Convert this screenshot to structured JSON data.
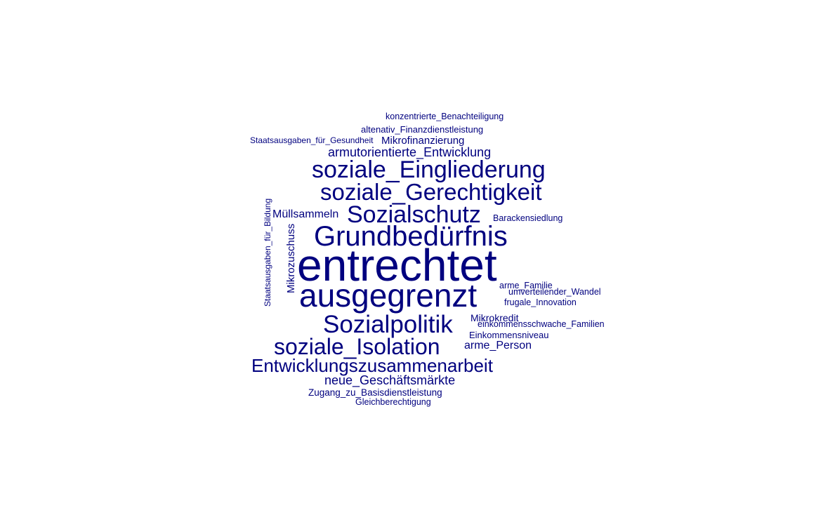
{
  "word_cloud": {
    "color": "#00007F",
    "words": [
      "entrechtet",
      "ausgegrenzt",
      "Grundbedürfnis",
      "Sozialpolitik",
      "Sozialschutz",
      "soziale_Eingliederung",
      "soziale_Gerechtigkeit",
      "soziale_Isolation",
      "Entwicklungszusammenarbeit",
      "armutorientierte_Entwicklung",
      "neue_Geschäftsmärkte",
      "Müllsammeln",
      "Mikrozuschuss",
      "Staatsausgaben_für_Bildung",
      "konzentrierte_Benachteiligung",
      "altenativ_Finanzdienstleistung",
      "Staatsausgaben_für_Gesundheit",
      "Mikrofinanzierung",
      "Barackensiedlung",
      "arme_Familie",
      "umverteilender_Wandel",
      "frugale_Innovation",
      "Mikrokredit",
      "einkommensschwache_Familien",
      "Einkommensniveau",
      "arme_Person",
      "Zugang_zu_Basisdienstleistung",
      "Gleichberechtigung"
    ]
  }
}
